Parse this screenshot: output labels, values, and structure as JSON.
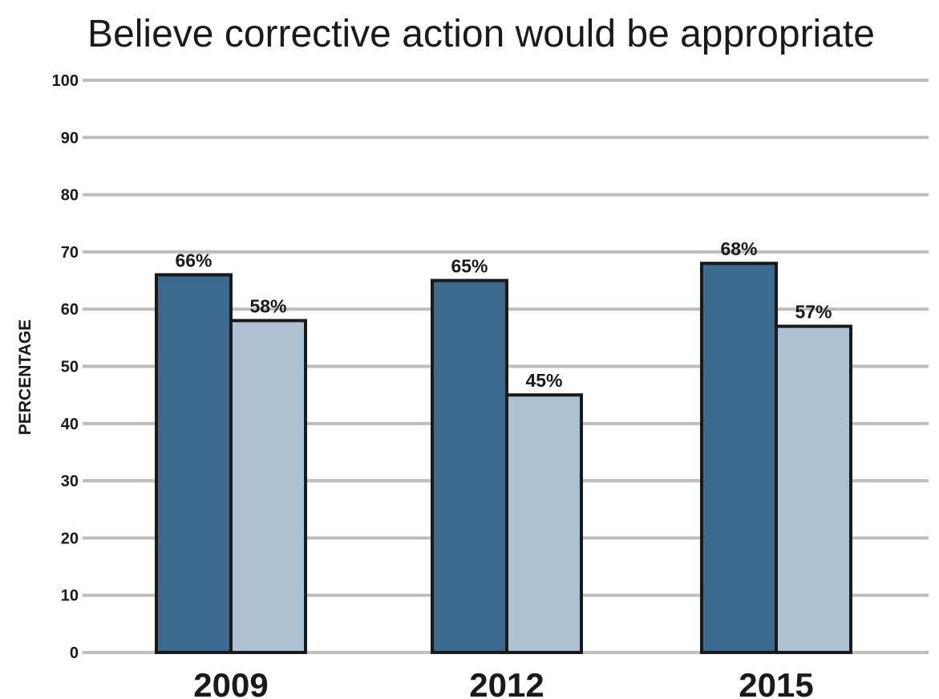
{
  "chart_data": {
    "type": "bar",
    "title": "Believe corrective action would be appropriate",
    "xlabel": "",
    "ylabel": "PERCENTAGE",
    "categories": [
      "2009",
      "2012",
      "2015"
    ],
    "series": [
      {
        "values": [
          66,
          65,
          68
        ],
        "color": "#3a6a90"
      },
      {
        "values": [
          58,
          45,
          57
        ],
        "color": "#adc1d3"
      }
    ],
    "data_labels": [
      [
        "66%",
        "65%",
        "68%"
      ],
      [
        "58%",
        "45%",
        "57%"
      ]
    ],
    "ylim": [
      0,
      100
    ],
    "yticks": [
      0,
      10,
      20,
      30,
      40,
      50,
      60,
      70,
      80,
      90,
      100
    ],
    "grid": true,
    "legend": "none",
    "gridline_color": "#bdbdbd",
    "bar_outline_color": "#1a1a1a"
  }
}
